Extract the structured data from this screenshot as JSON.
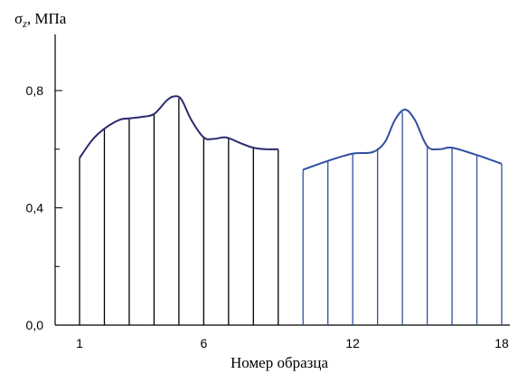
{
  "chart_data": {
    "type": "line",
    "xlabel": "Номер образца",
    "ylabel": "σz, МПа",
    "ylabel_main": "σ",
    "ylabel_sub": "z",
    "ylabel_rest": ", МПа",
    "xlim": [
      0.5,
      18.5
    ],
    "ylim": [
      0,
      0.8
    ],
    "ymax": 0.98,
    "x_ticks": [
      "1",
      "6",
      "12",
      "18"
    ],
    "x_tick_values": [
      1,
      6,
      12,
      18
    ],
    "y_ticks": [
      "0,0",
      "0,4",
      "0,8"
    ],
    "y_tick_values": [
      0,
      0.4,
      0.8
    ],
    "y_minor_step": 0.2,
    "grid": false,
    "series": [
      {
        "color": "#2a2a6e",
        "bar_color": "#000000",
        "bar_x": [
          1,
          2,
          3,
          4,
          5,
          6,
          7,
          8,
          9
        ],
        "curve": [
          {
            "x": 1.0,
            "y": 0.57
          },
          {
            "x": 1.5,
            "y": 0.63
          },
          {
            "x": 2.0,
            "y": 0.67
          },
          {
            "x": 2.6,
            "y": 0.7
          },
          {
            "x": 3.0,
            "y": 0.705
          },
          {
            "x": 3.5,
            "y": 0.71
          },
          {
            "x": 4.0,
            "y": 0.72
          },
          {
            "x": 4.5,
            "y": 0.765
          },
          {
            "x": 4.8,
            "y": 0.78
          },
          {
            "x": 5.1,
            "y": 0.77
          },
          {
            "x": 5.5,
            "y": 0.7
          },
          {
            "x": 6.0,
            "y": 0.64
          },
          {
            "x": 6.4,
            "y": 0.635
          },
          {
            "x": 6.9,
            "y": 0.64
          },
          {
            "x": 7.5,
            "y": 0.62
          },
          {
            "x": 8.0,
            "y": 0.605
          },
          {
            "x": 8.5,
            "y": 0.6
          },
          {
            "x": 9.0,
            "y": 0.6
          }
        ]
      },
      {
        "color": "#2f4fa0",
        "bar_color": "#2f4fa0",
        "bar_x": [
          10,
          11,
          12,
          13,
          14,
          15,
          16,
          17,
          18
        ],
        "curve": [
          {
            "x": 10.0,
            "y": 0.53
          },
          {
            "x": 11.0,
            "y": 0.56
          },
          {
            "x": 12.0,
            "y": 0.585
          },
          {
            "x": 12.8,
            "y": 0.59
          },
          {
            "x": 13.3,
            "y": 0.625
          },
          {
            "x": 13.7,
            "y": 0.7
          },
          {
            "x": 14.1,
            "y": 0.735
          },
          {
            "x": 14.5,
            "y": 0.7
          },
          {
            "x": 15.0,
            "y": 0.61
          },
          {
            "x": 15.5,
            "y": 0.6
          },
          {
            "x": 16.0,
            "y": 0.605
          },
          {
            "x": 17.0,
            "y": 0.58
          },
          {
            "x": 18.0,
            "y": 0.55
          }
        ]
      }
    ]
  }
}
